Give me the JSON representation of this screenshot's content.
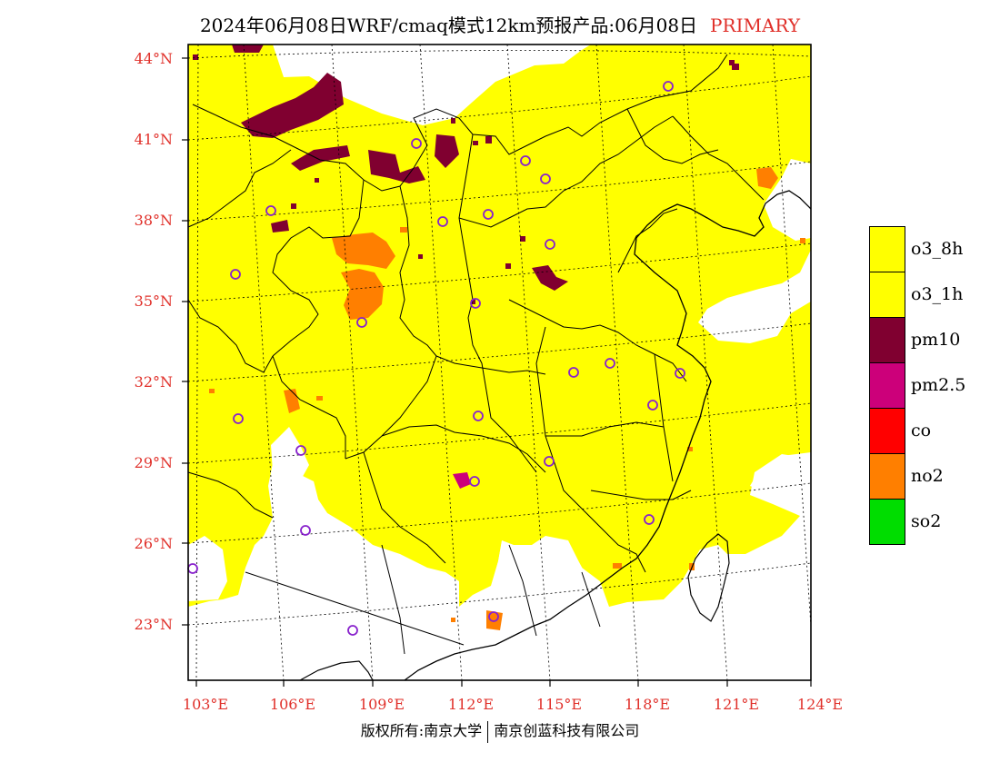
{
  "title": "2024年06月08日WRF/cmaq模式12km预报产品:06月08日",
  "title_tag": "PRIMARY",
  "colors": {
    "o3_8h": "#ffff00",
    "o3_1h": "#ffff00",
    "pm10": "#800030",
    "pm25": "#cc007a",
    "co": "#ff0000",
    "no2": "#ff7f00",
    "so2": "#00dd00",
    "station": "#8822cc",
    "label": "#e0302a"
  },
  "lat_labels": [
    "44°N",
    "41°N",
    "38°N",
    "35°N",
    "32°N",
    "29°N",
    "26°N",
    "23°N"
  ],
  "lon_labels": [
    "103°E",
    "106°E",
    "109°E",
    "112°E",
    "115°E",
    "118°E",
    "121°E",
    "124°E"
  ],
  "legend": [
    {
      "key": "o3_8h",
      "label": "o3_8h"
    },
    {
      "key": "o3_1h",
      "label": "o3_1h"
    },
    {
      "key": "pm10",
      "label": "pm10"
    },
    {
      "key": "pm25",
      "label": "pm2.5"
    },
    {
      "key": "co",
      "label": "co"
    },
    {
      "key": "no2",
      "label": "no2"
    },
    {
      "key": "so2",
      "label": "so2"
    }
  ],
  "footer": {
    "left": "版权所有:南京大学",
    "right": "南京创蓝科技有限公司"
  }
}
